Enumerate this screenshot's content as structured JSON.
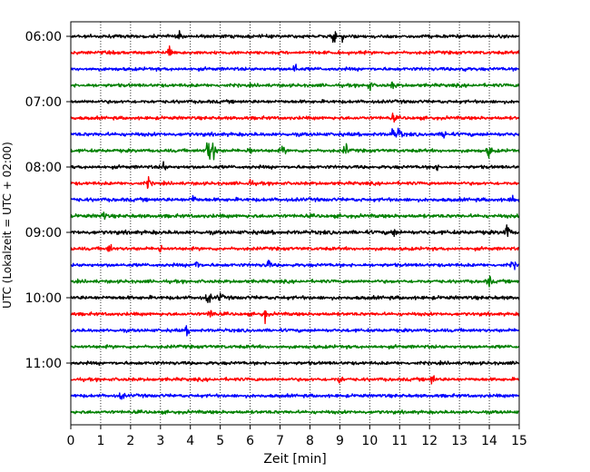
{
  "chart_data": {
    "type": "line",
    "title": "",
    "xlabel": "Zeit  [min]",
    "ylabel": "UTC (Lokalzeit = UTC + 02:00)",
    "xlim": [
      0,
      15
    ],
    "x_ticks": [
      0,
      1,
      2,
      3,
      4,
      5,
      6,
      7,
      8,
      9,
      10,
      11,
      12,
      13,
      14,
      15
    ],
    "x_tick_labels": [
      "0",
      "1",
      "2",
      "3",
      "4",
      "5",
      "6",
      "7",
      "8",
      "9",
      "10",
      "11",
      "12",
      "13",
      "14",
      "15"
    ],
    "y_tick_labels": [
      "06:00",
      "07:00",
      "08:00",
      "09:00",
      "10:00",
      "11:00"
    ],
    "y_tick_rows": [
      0,
      4,
      8,
      12,
      16,
      20
    ],
    "grid": {
      "x": true,
      "y": false,
      "style": "dotted"
    },
    "trace_colors": [
      "#000000",
      "#ff0000",
      "#0000ff",
      "#008000"
    ],
    "traces": [
      {
        "start": "06:00",
        "color": "#000000",
        "amplitude": 0.22,
        "events": [
          [
            3.6,
            0.5
          ],
          [
            8.8,
            0.7
          ],
          [
            9.1,
            0.6
          ]
        ]
      },
      {
        "start": "06:15",
        "color": "#ff0000",
        "amplitude": 0.22,
        "events": [
          [
            3.3,
            1.0
          ]
        ]
      },
      {
        "start": "06:30",
        "color": "#0000ff",
        "amplitude": 0.22,
        "events": [
          [
            7.5,
            0.8
          ],
          [
            13.1,
            0.5
          ]
        ]
      },
      {
        "start": "06:45",
        "color": "#008000",
        "amplitude": 0.22,
        "events": [
          [
            10.0,
            0.6
          ],
          [
            10.8,
            0.5
          ]
        ]
      },
      {
        "start": "07:00",
        "color": "#000000",
        "amplitude": 0.22,
        "events": []
      },
      {
        "start": "07:15",
        "color": "#ff0000",
        "amplitude": 0.22,
        "events": [
          [
            10.8,
            0.5
          ]
        ]
      },
      {
        "start": "07:30",
        "color": "#0000ff",
        "amplitude": 0.24,
        "events": [
          [
            10.8,
            0.9
          ],
          [
            11.0,
            0.8
          ],
          [
            12.5,
            0.6
          ]
        ]
      },
      {
        "start": "07:45",
        "color": "#008000",
        "amplitude": 0.22,
        "events": [
          [
            4.6,
            1.9
          ],
          [
            4.8,
            1.8
          ],
          [
            6.0,
            0.7
          ],
          [
            7.1,
            0.6
          ],
          [
            9.2,
            0.8
          ],
          [
            14.0,
            0.9
          ]
        ]
      },
      {
        "start": "08:00",
        "color": "#000000",
        "amplitude": 0.22,
        "events": [
          [
            3.1,
            0.7
          ],
          [
            12.2,
            0.5
          ]
        ]
      },
      {
        "start": "08:15",
        "color": "#ff0000",
        "amplitude": 0.22,
        "events": [
          [
            2.6,
            0.7
          ],
          [
            6.0,
            0.5
          ]
        ]
      },
      {
        "start": "08:30",
        "color": "#0000ff",
        "amplitude": 0.24,
        "events": [
          [
            4.1,
            0.6
          ],
          [
            14.8,
            0.6
          ]
        ]
      },
      {
        "start": "08:45",
        "color": "#008000",
        "amplitude": 0.24,
        "events": [
          [
            1.1,
            0.5
          ]
        ]
      },
      {
        "start": "09:00",
        "color": "#000000",
        "amplitude": 0.26,
        "events": [
          [
            10.8,
            0.6
          ],
          [
            14.6,
            1.2
          ]
        ]
      },
      {
        "start": "09:15",
        "color": "#ff0000",
        "amplitude": 0.22,
        "events": [
          [
            1.3,
            0.6
          ],
          [
            3.0,
            0.5
          ]
        ]
      },
      {
        "start": "09:30",
        "color": "#0000ff",
        "amplitude": 0.22,
        "events": [
          [
            4.2,
            0.8
          ],
          [
            6.6,
            0.7
          ],
          [
            14.8,
            0.5
          ]
        ]
      },
      {
        "start": "09:45",
        "color": "#008000",
        "amplitude": 0.22,
        "events": [
          [
            14.0,
            0.7
          ]
        ]
      },
      {
        "start": "10:00",
        "color": "#000000",
        "amplitude": 0.24,
        "events": [
          [
            4.6,
            0.8
          ],
          [
            5.0,
            0.6
          ]
        ]
      },
      {
        "start": "10:15",
        "color": "#ff0000",
        "amplitude": 0.22,
        "events": [
          [
            4.7,
            0.9
          ],
          [
            6.5,
            0.9
          ]
        ]
      },
      {
        "start": "10:30",
        "color": "#0000ff",
        "amplitude": 0.22,
        "events": [
          [
            3.9,
            0.5
          ]
        ]
      },
      {
        "start": "10:45",
        "color": "#008000",
        "amplitude": 0.22,
        "events": []
      },
      {
        "start": "11:00",
        "color": "#000000",
        "amplitude": 0.22,
        "events": []
      },
      {
        "start": "11:15",
        "color": "#ff0000",
        "amplitude": 0.22,
        "events": [
          [
            9.0,
            0.6
          ],
          [
            12.1,
            0.7
          ]
        ]
      },
      {
        "start": "11:30",
        "color": "#0000ff",
        "amplitude": 0.22,
        "events": [
          [
            1.7,
            0.5
          ]
        ]
      },
      {
        "start": "11:45",
        "color": "#008000",
        "amplitude": 0.22,
        "events": []
      }
    ]
  }
}
